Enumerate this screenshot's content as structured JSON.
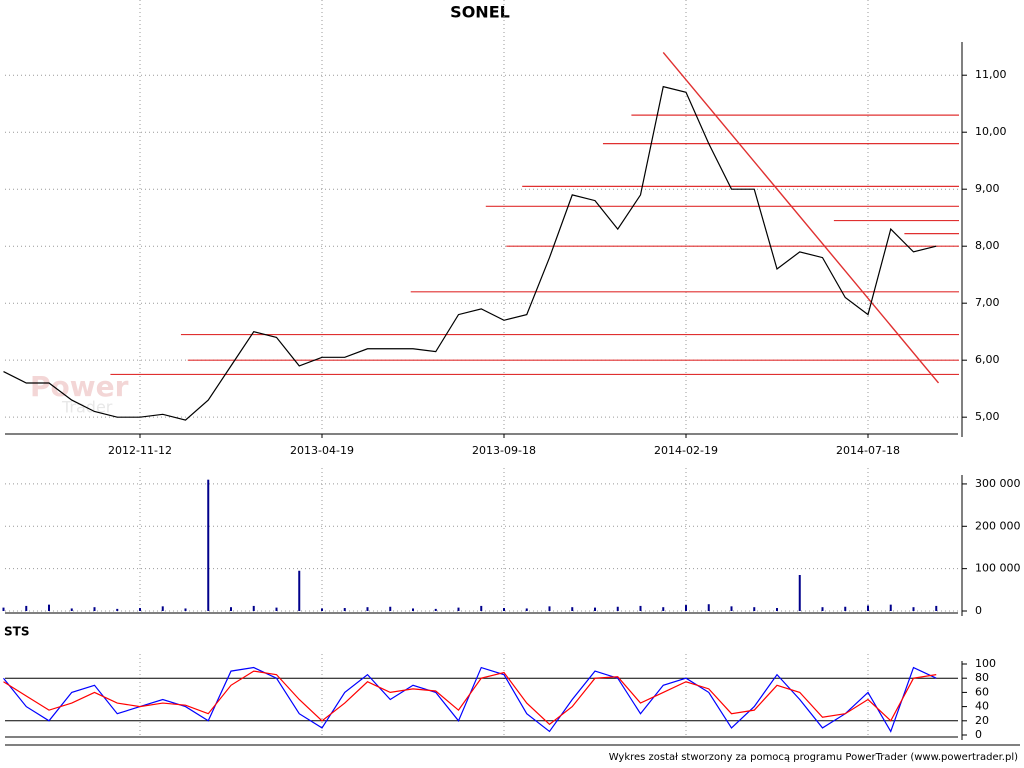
{
  "title": "SONEL",
  "footer": "Wykres został stworzony za pomocą programu PowerTrader (www.powertrader.pl)",
  "watermark": [
    "Power",
    "Trader"
  ],
  "chart_data": [
    {
      "type": "line",
      "x": [
        0,
        1,
        2,
        3,
        4,
        5,
        6,
        7,
        8,
        9,
        10,
        11,
        12,
        13,
        14,
        15,
        16,
        17,
        18,
        19,
        20,
        21,
        22,
        23,
        24,
        25,
        26,
        27,
        28,
        29,
        30,
        31,
        32,
        33,
        34,
        35,
        36,
        37,
        38,
        39,
        40,
        41
      ],
      "xlim": [
        0,
        42
      ],
      "xticks": [
        {
          "value": 6,
          "label": "2012-11-12"
        },
        {
          "value": 14,
          "label": "2013-04-19"
        },
        {
          "value": 22,
          "label": "2013-09-18"
        },
        {
          "value": 30,
          "label": "2014-02-19"
        },
        {
          "value": 38,
          "label": "2014-07-18"
        }
      ],
      "ylim": [
        4.74,
        11.53
      ],
      "yticks": [
        {
          "value": 5,
          "label": "5,00"
        },
        {
          "value": 6,
          "label": "6,00"
        },
        {
          "value": 7,
          "label": "7,00"
        },
        {
          "value": 8,
          "label": "8,00"
        },
        {
          "value": 9,
          "label": "9,00"
        },
        {
          "value": 10,
          "label": "10,00"
        },
        {
          "value": 11,
          "label": "11,00"
        }
      ],
      "grid": true,
      "series": [
        {
          "color": "#000000",
          "values": [
            5.8,
            5.6,
            5.6,
            5.3,
            5.1,
            5.0,
            5.0,
            5.05,
            4.95,
            5.3,
            5.9,
            6.5,
            6.4,
            5.9,
            6.05,
            6.05,
            6.2,
            6.2,
            6.2,
            6.15,
            6.8,
            6.9,
            6.7,
            6.8,
            7.8,
            8.9,
            8.8,
            8.3,
            8.9,
            10.8,
            10.7,
            9.8,
            9.0,
            9.0,
            7.6,
            7.9,
            7.8,
            7.1,
            6.8,
            8.3,
            7.9,
            8.0
          ]
        }
      ],
      "levels": [
        {
          "x": [
            27.6,
            42
          ],
          "value": 10.3
        },
        {
          "x": [
            26.35,
            42
          ],
          "value": 9.8
        },
        {
          "x": [
            22.8,
            42
          ],
          "value": 9.05
        },
        {
          "x": [
            21.2,
            42
          ],
          "value": 8.7
        },
        {
          "x": [
            36.5,
            42
          ],
          "value": 8.45
        },
        {
          "x": [
            39.6,
            42
          ],
          "value": 8.22
        },
        {
          "x": [
            22.1,
            42
          ],
          "value": 8.0
        },
        {
          "x": [
            17.9,
            42
          ],
          "value": 7.2
        },
        {
          "x": [
            7.8,
            42
          ],
          "value": 6.45
        },
        {
          "x": [
            8.1,
            42
          ],
          "value": 6.0
        },
        {
          "x": [
            4.7,
            42
          ],
          "value": 5.75
        }
      ],
      "level_color": "#e03030",
      "trend": {
        "x": [
          29,
          41.1
        ],
        "values": [
          11.4,
          5.6
        ]
      }
    },
    {
      "type": "bar",
      "x": [
        0,
        1,
        2,
        3,
        4,
        5,
        6,
        7,
        8,
        9,
        10,
        11,
        12,
        13,
        14,
        15,
        16,
        17,
        18,
        19,
        20,
        21,
        22,
        23,
        24,
        25,
        26,
        27,
        28,
        29,
        30,
        31,
        32,
        33,
        34,
        35,
        36,
        37,
        38,
        39,
        40,
        41
      ],
      "xlim": [
        0,
        42
      ],
      "ylim": [
        0,
        314000
      ],
      "yticks": [
        0,
        {
          "value": 100000,
          "label": "100 000"
        },
        {
          "value": 200000,
          "label": "200 000"
        },
        {
          "value": 300000,
          "label": "300 000"
        }
      ],
      "grid": true,
      "color": "#00008b",
      "values": [
        8000,
        12000,
        15000,
        6000,
        9000,
        5000,
        7000,
        11000,
        6000,
        310000,
        9000,
        12000,
        8000,
        95000,
        6000,
        7000,
        9000,
        10000,
        6000,
        5000,
        8000,
        12000,
        7000,
        6000,
        11000,
        9000,
        8000,
        10000,
        12000,
        9000,
        14000,
        16000,
        11000,
        9000,
        7000,
        85000,
        9000,
        10000,
        13000,
        15000,
        9000,
        12000
      ]
    },
    {
      "type": "line",
      "title": "STS",
      "x": [
        0,
        1,
        2,
        3,
        4,
        5,
        6,
        7,
        8,
        9,
        10,
        11,
        12,
        13,
        14,
        15,
        16,
        17,
        18,
        19,
        20,
        21,
        22,
        23,
        24,
        25,
        26,
        27,
        28,
        29,
        30,
        31,
        32,
        33,
        34,
        35,
        36,
        37,
        38,
        39,
        40,
        41
      ],
      "xlim": [
        0,
        42
      ],
      "ylim": [
        0,
        100
      ],
      "yticks": [
        0,
        20,
        40,
        60,
        80,
        100
      ],
      "hlines": [
        20,
        80
      ],
      "series": [
        {
          "color": "#0000ff",
          "values": [
            80,
            40,
            20,
            60,
            70,
            30,
            40,
            50,
            40,
            20,
            90,
            95,
            80,
            30,
            10,
            60,
            85,
            50,
            70,
            60,
            20,
            95,
            85,
            30,
            5,
            50,
            90,
            80,
            30,
            70,
            80,
            60,
            10,
            40,
            85,
            50,
            10,
            30,
            60,
            5,
            95,
            80
          ]
        },
        {
          "color": "#ff0000",
          "values": [
            75,
            55,
            35,
            45,
            60,
            45,
            40,
            45,
            42,
            30,
            70,
            90,
            85,
            50,
            20,
            45,
            75,
            60,
            65,
            62,
            35,
            80,
            88,
            45,
            15,
            40,
            80,
            82,
            45,
            60,
            75,
            65,
            30,
            35,
            70,
            60,
            25,
            30,
            50,
            20,
            80,
            85
          ]
        }
      ]
    }
  ]
}
